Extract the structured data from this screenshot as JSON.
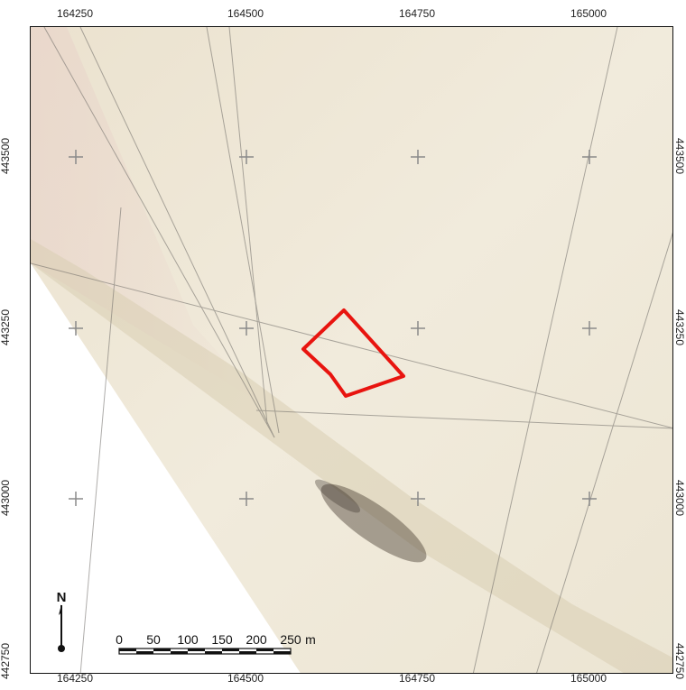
{
  "grid": {
    "x_labels": [
      "164250",
      "164500",
      "164750",
      "165000"
    ],
    "y_labels": [
      "443500",
      "443250",
      "443000",
      "442750"
    ]
  },
  "scale_bar": {
    "ticks": [
      "0",
      "50",
      "100",
      "150",
      "200",
      "250"
    ],
    "unit": "m"
  },
  "north_arrow": {
    "label": "N"
  },
  "colors": {
    "map_parchment": "#efe8d8",
    "study_area_outline": "#e8140f",
    "grid_cross": "#8a8a8a"
  }
}
